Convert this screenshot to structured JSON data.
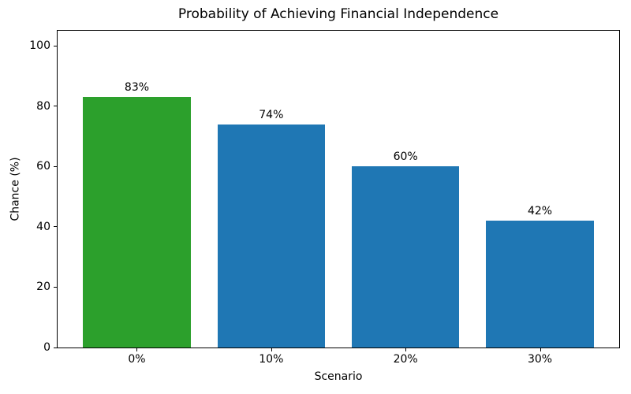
{
  "chart_data": {
    "type": "bar",
    "title": "Probability of Achieving Financial Independence",
    "xlabel": "Scenario",
    "ylabel": "Chance (%)",
    "categories": [
      "0%",
      "10%",
      "20%",
      "30%"
    ],
    "values": [
      83,
      74,
      60,
      42
    ],
    "bar_labels": [
      "83%",
      "74%",
      "60%",
      "42%"
    ],
    "bar_colors": [
      "#2ca02c",
      "#1f77b4",
      "#1f77b4",
      "#1f77b4"
    ],
    "yticks": [
      0,
      20,
      40,
      60,
      80,
      100
    ],
    "ylim": [
      0,
      105
    ],
    "grid": false,
    "legend_position": null,
    "background_color": "#ffffff",
    "text_color": "#000000",
    "spine_color": "#000000"
  }
}
